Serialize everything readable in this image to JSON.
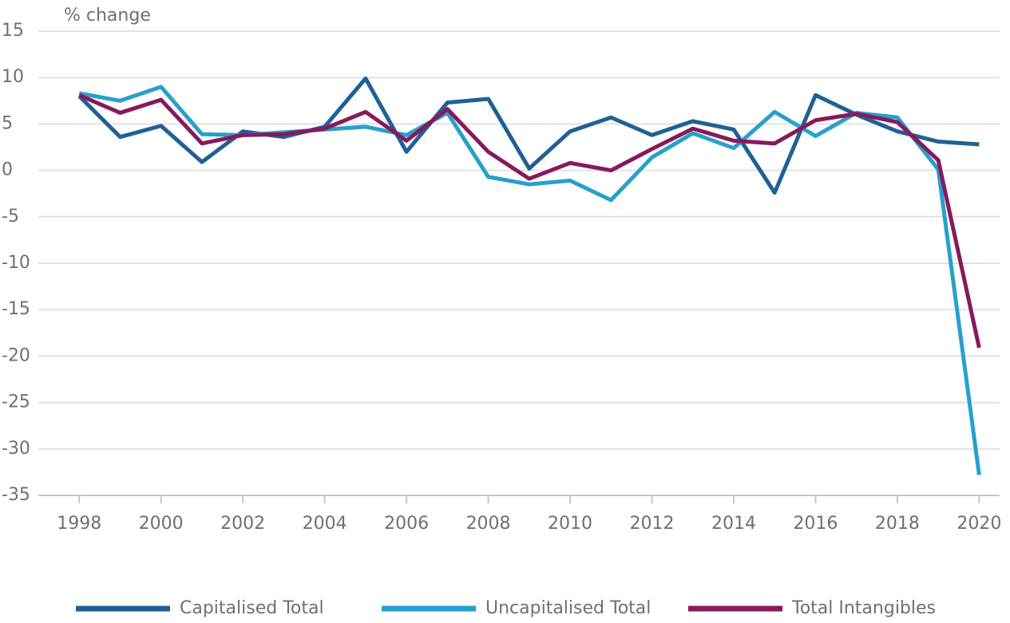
{
  "chart_data": {
    "type": "line",
    "y_label": "% change",
    "x": [
      1998,
      1999,
      2000,
      2001,
      2002,
      2003,
      2004,
      2005,
      2006,
      2007,
      2008,
      2009,
      2010,
      2011,
      2012,
      2013,
      2014,
      2015,
      2016,
      2017,
      2018,
      2019,
      2020
    ],
    "series": [
      {
        "name": "Capitalised Total",
        "color": "#206095",
        "values": [
          8.0,
          3.6,
          4.8,
          0.9,
          4.2,
          3.6,
          4.7,
          9.9,
          2.0,
          7.3,
          7.7,
          0.2,
          4.2,
          5.7,
          3.8,
          5.3,
          4.4,
          -2.4,
          8.1,
          6.0,
          4.2,
          3.1,
          2.8
        ]
      },
      {
        "name": "Uncapitalised Total",
        "color": "#27a0cc",
        "values": [
          8.3,
          7.5,
          9.0,
          3.9,
          3.8,
          4.1,
          4.4,
          4.7,
          3.8,
          6.2,
          -0.7,
          -1.5,
          -1.1,
          -3.2,
          1.4,
          4.0,
          2.4,
          6.3,
          3.7,
          6.2,
          5.7,
          0.1,
          -32.8
        ]
      },
      {
        "name": "Total Intangibles",
        "color": "#871a5b",
        "values": [
          8.1,
          6.2,
          7.6,
          2.9,
          3.8,
          3.9,
          4.5,
          6.3,
          3.2,
          6.6,
          2.0,
          -0.9,
          0.8,
          0.0,
          2.3,
          4.5,
          3.2,
          2.9,
          5.4,
          6.1,
          5.2,
          1.1,
          -19.1
        ]
      }
    ],
    "xlim": [
      1997,
      2020.5
    ],
    "xticks": [
      1998,
      2000,
      2002,
      2004,
      2006,
      2008,
      2010,
      2012,
      2014,
      2016,
      2018,
      2020
    ],
    "ylim": [
      -35,
      15
    ],
    "yticks": [
      -35,
      -30,
      -25,
      -20,
      -15,
      -10,
      -5,
      0,
      5,
      10,
      15
    ],
    "grid": true,
    "legend": "bottom"
  }
}
